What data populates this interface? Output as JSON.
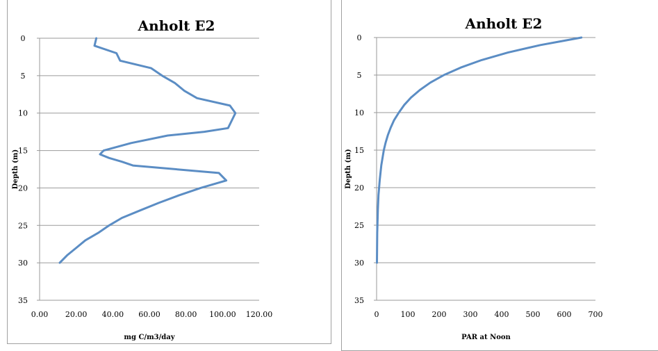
{
  "chart_data": [
    {
      "type": "line",
      "title": "Anholt E2",
      "xlabel": "mg C/m3/day",
      "ylabel": "Depth (m)",
      "xlim": [
        0,
        120
      ],
      "ylim": [
        35,
        0
      ],
      "y_inverted": true,
      "x_tick_labels": [
        "0.00",
        "20.00",
        "40.00",
        "60.00",
        "80.00",
        "100.00",
        "120.00"
      ],
      "x_ticks": [
        0,
        20,
        40,
        60,
        80,
        100,
        120
      ],
      "y_tick_labels": [
        "0",
        "5",
        "10",
        "15",
        "20",
        "25",
        "30",
        "35"
      ],
      "y_ticks": [
        0,
        5,
        10,
        15,
        20,
        25,
        30,
        35
      ],
      "grid": "horizontal",
      "series": [
        {
          "color": "#5b8dc4",
          "x": [
            31,
            30,
            42,
            44,
            61,
            67,
            74,
            79,
            86,
            104,
            107,
            105,
            103,
            90,
            70,
            50,
            35,
            33,
            38,
            45,
            51,
            98,
            102,
            88,
            76,
            65,
            55,
            45,
            38,
            32,
            25,
            20,
            15,
            11
          ],
          "y": [
            0,
            1,
            2,
            3,
            4,
            5,
            6,
            7,
            8,
            9,
            10,
            11,
            12,
            12.5,
            13,
            14,
            15,
            15.5,
            16,
            16.5,
            17,
            18,
            19,
            20,
            21,
            22,
            23,
            24,
            25,
            26,
            27,
            28,
            29,
            30
          ]
        }
      ]
    },
    {
      "type": "line",
      "title": "Anholt E2",
      "xlabel": "PAR at Noon",
      "ylabel": "Depth (m)",
      "xlim": [
        0,
        700
      ],
      "ylim": [
        35,
        0
      ],
      "y_inverted": true,
      "x_tick_labels": [
        "0",
        "100",
        "200",
        "300",
        "400",
        "500",
        "600",
        "700"
      ],
      "x_ticks": [
        0,
        100,
        200,
        300,
        400,
        500,
        600,
        700
      ],
      "y_tick_labels": [
        "0",
        "5",
        "10",
        "15",
        "20",
        "25",
        "30",
        "35"
      ],
      "y_ticks": [
        0,
        5,
        10,
        15,
        20,
        25,
        30,
        35
      ],
      "grid": "horizontal",
      "series": [
        {
          "color": "#5b8dc4",
          "x": [
            655,
            590,
            524,
            420,
            336,
            269,
            215,
            172,
            138,
            110,
            88,
            71,
            56,
            45,
            36,
            29,
            23,
            15,
            10,
            6,
            4,
            2,
            1
          ],
          "y": [
            0,
            0.5,
            1,
            2,
            3,
            4,
            5,
            6,
            7,
            8,
            9,
            10,
            11,
            12,
            13,
            14,
            15,
            17,
            19,
            21,
            23,
            26,
            30
          ]
        }
      ]
    }
  ]
}
